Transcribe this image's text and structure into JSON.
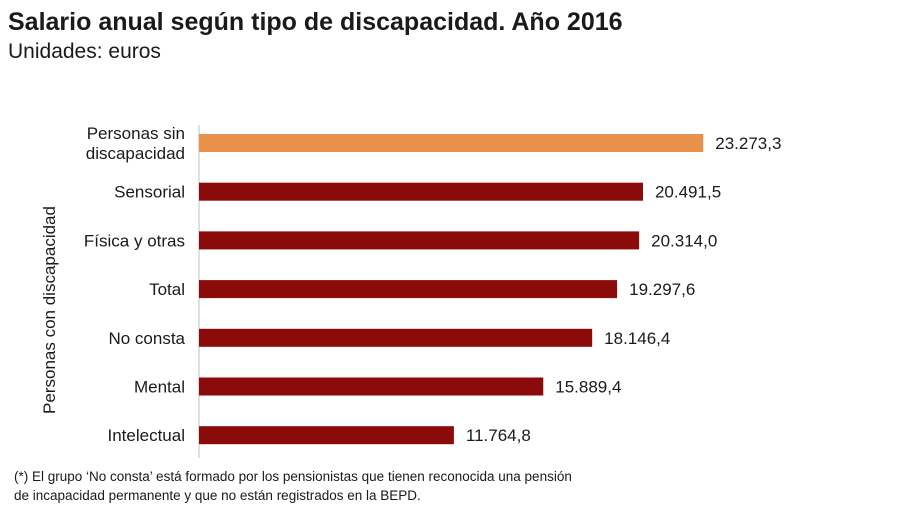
{
  "chart_data": {
    "type": "bar",
    "orientation": "horizontal",
    "title": "Salario anual según tipo de discapacidad. Año 2016",
    "subtitle": "Unidades: euros",
    "ylabel": "Personas con discapacidad",
    "xlabel": "",
    "xlim": [
      0,
      24000
    ],
    "grid": false,
    "categories": [
      "Personas sin discapacidad",
      "Sensorial",
      "Física y otras",
      "Total",
      "No consta",
      "Mental",
      "Intelectual"
    ],
    "category_lines": [
      [
        "Personas sin",
        "discapacidad"
      ],
      [
        "Sensorial"
      ],
      [
        "Física y otras"
      ],
      [
        "Total"
      ],
      [
        "No consta"
      ],
      [
        "Mental"
      ],
      [
        "Intelectual"
      ]
    ],
    "values": [
      23273.3,
      20491.5,
      20314.0,
      19297.6,
      18146.4,
      15889.4,
      11764.8
    ],
    "value_labels": [
      "23.273,3",
      "20.491,5",
      "20.314,0",
      "19.297,6",
      "18.146,4",
      "15.889,4",
      "11.764,8"
    ],
    "colors": [
      "#e8914a",
      "#8b0a0a",
      "#8b0a0a",
      "#8b0a0a",
      "#8b0a0a",
      "#8b0a0a",
      "#8b0a0a"
    ]
  },
  "footnote": {
    "line1": "(*) El grupo ‘No consta’ está formado por los pensionistas que tienen reconocida una pensión",
    "line2": "de incapacidad permanente y que no están registrados en la BEPD."
  }
}
